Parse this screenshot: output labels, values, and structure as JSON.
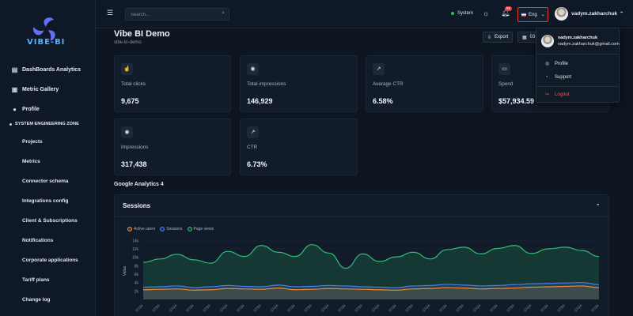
{
  "brand": {
    "logo_text": "VIBE-BI"
  },
  "sidebar": {
    "items": [
      {
        "label": "DashBoards Analytics",
        "icon": "dashboard-icon"
      },
      {
        "label": "Metric Gallery",
        "icon": "gallery-icon"
      },
      {
        "label": "Profile",
        "icon": "user-icon"
      }
    ],
    "zone_title": "SYSTEM ENGINEERING ZONE",
    "sub_items": [
      "Projects",
      "Metrics",
      "Connector schema",
      "Integrations config",
      "Client & Subscriptions",
      "Notifications",
      "Corporate applications",
      "Tariff plans",
      "Change log"
    ]
  },
  "topbar": {
    "search_placeholder": "Search...",
    "system_label": "System",
    "notification_count": "99",
    "language": "Eng",
    "username": "vadym.zakharchuk"
  },
  "page": {
    "title": "Vibe BI Demo",
    "subtitle": "vibe-bi-demo",
    "export_label": "Export",
    "date_label": "03"
  },
  "cards": [
    {
      "label": "Total clicks",
      "value": "9,675",
      "icon": "pointer-icon"
    },
    {
      "label": "Total impressions",
      "value": "146,929",
      "icon": "eye-icon"
    },
    {
      "label": "Average CTR",
      "value": "6.58%",
      "icon": "trend-icon"
    },
    {
      "label": "Spend",
      "value": "$57,934.59",
      "icon": "money-icon"
    },
    {
      "label": "Impressions",
      "value": "317,438",
      "icon": "eye-icon"
    },
    {
      "label": "CTR",
      "value": "6.73%",
      "icon": "trend-icon"
    }
  ],
  "section": {
    "title": "Google Analytics 4"
  },
  "chart_data": {
    "type": "area",
    "title": "Sessions",
    "ylabel": "Value",
    "y_ticks": [
      "2k",
      "4k",
      "6k",
      "8k",
      "10k",
      "12k",
      "14k"
    ],
    "ylim": [
      0,
      15000
    ],
    "x_tick_label": "07/24",
    "x_count": 28,
    "legend_position": "top-left",
    "series": [
      {
        "name": "Active users",
        "color": "#f08a3c",
        "values": [
          2300,
          2400,
          2500,
          2200,
          2300,
          2600,
          2500,
          2400,
          2700,
          2300,
          2400,
          2600,
          2500,
          2400,
          2300,
          2200,
          2500,
          2600,
          2800,
          2700,
          2500,
          2600,
          2700,
          2900,
          3000,
          3100,
          3200,
          2800
        ]
      },
      {
        "name": "Sessions",
        "color": "#4f7cf0",
        "values": [
          2900,
          3000,
          3200,
          2800,
          3000,
          3300,
          3100,
          3000,
          3400,
          3000,
          3100,
          3300,
          3200,
          3000,
          2900,
          2800,
          3200,
          3300,
          3600,
          3400,
          3200,
          3300,
          3500,
          3700,
          3800,
          3900,
          4000,
          3500
        ]
      },
      {
        "name": "Page views",
        "color": "#2fbf71",
        "values": [
          8800,
          9600,
          10700,
          9400,
          8600,
          11400,
          10200,
          12800,
          11200,
          10200,
          13000,
          11000,
          7400,
          10800,
          9000,
          10100,
          11200,
          9600,
          11800,
          12400,
          10800,
          12100,
          12800,
          10900,
          12000,
          12400,
          11600,
          10200
        ]
      }
    ]
  },
  "dropdown": {
    "name": "vadym.zakharchuk",
    "email": "vadym.zakharchuk@gmail.com",
    "items": [
      {
        "label": "Profile",
        "icon": "user-icon"
      },
      {
        "label": "Support",
        "icon": "help-icon"
      }
    ],
    "logout": "Logout"
  }
}
